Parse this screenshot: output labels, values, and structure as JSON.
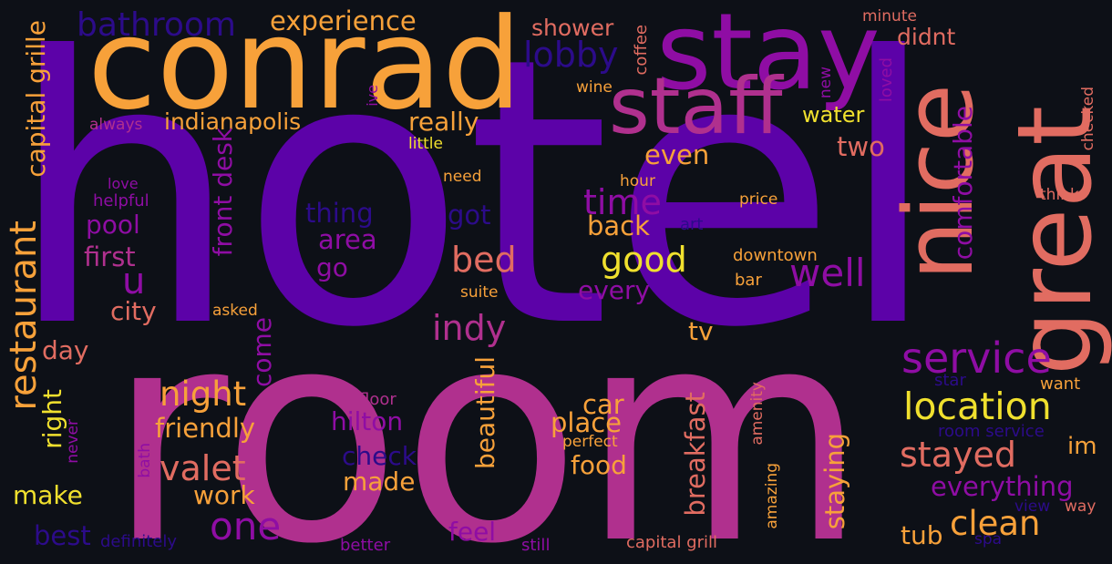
{
  "palette": {
    "background": "#0d1017",
    "indigo": "#5c02a8",
    "violet": "#8f0da4",
    "magenta": "#b0308e",
    "salmon": "#e16c61",
    "orange": "#f7a13a",
    "yellow": "#f0e02e",
    "navy": "#2c0b8a"
  },
  "words": [
    {
      "id": "hotel",
      "text": "hotel"
    },
    {
      "id": "room",
      "text": "room"
    },
    {
      "id": "conrad",
      "text": "conrad"
    },
    {
      "id": "stay",
      "text": "stay"
    },
    {
      "id": "staff",
      "text": "staff"
    },
    {
      "id": "great",
      "text": "great"
    },
    {
      "id": "nice",
      "text": "nice"
    },
    {
      "id": "bathroom",
      "text": "bathroom"
    },
    {
      "id": "experience",
      "text": "experience"
    },
    {
      "id": "shower",
      "text": "shower"
    },
    {
      "id": "lobby",
      "text": "lobby"
    },
    {
      "id": "didnt",
      "text": "didnt"
    },
    {
      "id": "minute",
      "text": "minute"
    },
    {
      "id": "indianapolis",
      "text": "indianapolis"
    },
    {
      "id": "really",
      "text": "really"
    },
    {
      "id": "water",
      "text": "water"
    },
    {
      "id": "always",
      "text": "always"
    },
    {
      "id": "little",
      "text": "little"
    },
    {
      "id": "even",
      "text": "even"
    },
    {
      "id": "two",
      "text": "two"
    },
    {
      "id": "time",
      "text": "time"
    },
    {
      "id": "wine",
      "text": "wine"
    },
    {
      "id": "need",
      "text": "need"
    },
    {
      "id": "hour",
      "text": "hour"
    },
    {
      "id": "price",
      "text": "price"
    },
    {
      "id": "think",
      "text": "think"
    },
    {
      "id": "love",
      "text": "love"
    },
    {
      "id": "helpful",
      "text": "helpful"
    },
    {
      "id": "thing",
      "text": "thing"
    },
    {
      "id": "got",
      "text": "got"
    },
    {
      "id": "back",
      "text": "back"
    },
    {
      "id": "art",
      "text": "art"
    },
    {
      "id": "pool",
      "text": "pool"
    },
    {
      "id": "area",
      "text": "area"
    },
    {
      "id": "good",
      "text": "good"
    },
    {
      "id": "first",
      "text": "first"
    },
    {
      "id": "bed",
      "text": "bed"
    },
    {
      "id": "well",
      "text": "well"
    },
    {
      "id": "downtown",
      "text": "downtown"
    },
    {
      "id": "go",
      "text": "go"
    },
    {
      "id": "bar",
      "text": "bar"
    },
    {
      "id": "u",
      "text": "u"
    },
    {
      "id": "suite",
      "text": "suite"
    },
    {
      "id": "every",
      "text": "every"
    },
    {
      "id": "city",
      "text": "city"
    },
    {
      "id": "asked",
      "text": "asked"
    },
    {
      "id": "indy",
      "text": "indy"
    },
    {
      "id": "tv",
      "text": "tv"
    },
    {
      "id": "service",
      "text": "service"
    },
    {
      "id": "day",
      "text": "day"
    },
    {
      "id": "night",
      "text": "night"
    },
    {
      "id": "location",
      "text": "location"
    },
    {
      "id": "floor",
      "text": "floor"
    },
    {
      "id": "car",
      "text": "car"
    },
    {
      "id": "want",
      "text": "want"
    },
    {
      "id": "star",
      "text": "star"
    },
    {
      "id": "friendly",
      "text": "friendly"
    },
    {
      "id": "hilton",
      "text": "hilton"
    },
    {
      "id": "place",
      "text": "place"
    },
    {
      "id": "room-service",
      "text": "room service"
    },
    {
      "id": "im",
      "text": "im"
    },
    {
      "id": "perfect",
      "text": "perfect"
    },
    {
      "id": "stayed",
      "text": "stayed"
    },
    {
      "id": "check",
      "text": "check"
    },
    {
      "id": "valet",
      "text": "valet"
    },
    {
      "id": "food",
      "text": "food"
    },
    {
      "id": "made",
      "text": "made"
    },
    {
      "id": "everything",
      "text": "everything"
    },
    {
      "id": "make",
      "text": "make"
    },
    {
      "id": "work",
      "text": "work"
    },
    {
      "id": "view",
      "text": "view"
    },
    {
      "id": "way",
      "text": "way"
    },
    {
      "id": "one",
      "text": "one"
    },
    {
      "id": "clean",
      "text": "clean"
    },
    {
      "id": "tub",
      "text": "tub"
    },
    {
      "id": "best",
      "text": "best"
    },
    {
      "id": "feel",
      "text": "feel"
    },
    {
      "id": "definitely",
      "text": "definitely"
    },
    {
      "id": "better",
      "text": "better"
    },
    {
      "id": "still",
      "text": "still"
    },
    {
      "id": "capital-grill",
      "text": "capital grill"
    },
    {
      "id": "spa",
      "text": "spa"
    },
    {
      "id": "restaurant",
      "text": "restaurant"
    },
    {
      "id": "capital-grille",
      "text": "capital grille"
    },
    {
      "id": "front-desk",
      "text": "front desk"
    },
    {
      "id": "coffee",
      "text": "coffee"
    },
    {
      "id": "ive",
      "text": "ive"
    },
    {
      "id": "new",
      "text": "new"
    },
    {
      "id": "loved",
      "text": "loved"
    },
    {
      "id": "checked",
      "text": "checked"
    },
    {
      "id": "comfortable",
      "text": "comfortable"
    },
    {
      "id": "beautiful",
      "text": "beautiful"
    },
    {
      "id": "breakfast",
      "text": "breakfast"
    },
    {
      "id": "staying",
      "text": "staying"
    },
    {
      "id": "amenity",
      "text": "amenity"
    },
    {
      "id": "amazing",
      "text": "amazing"
    },
    {
      "id": "come",
      "text": "come"
    },
    {
      "id": "right",
      "text": "right"
    },
    {
      "id": "never",
      "text": "never"
    },
    {
      "id": "bath",
      "text": "bath"
    }
  ]
}
